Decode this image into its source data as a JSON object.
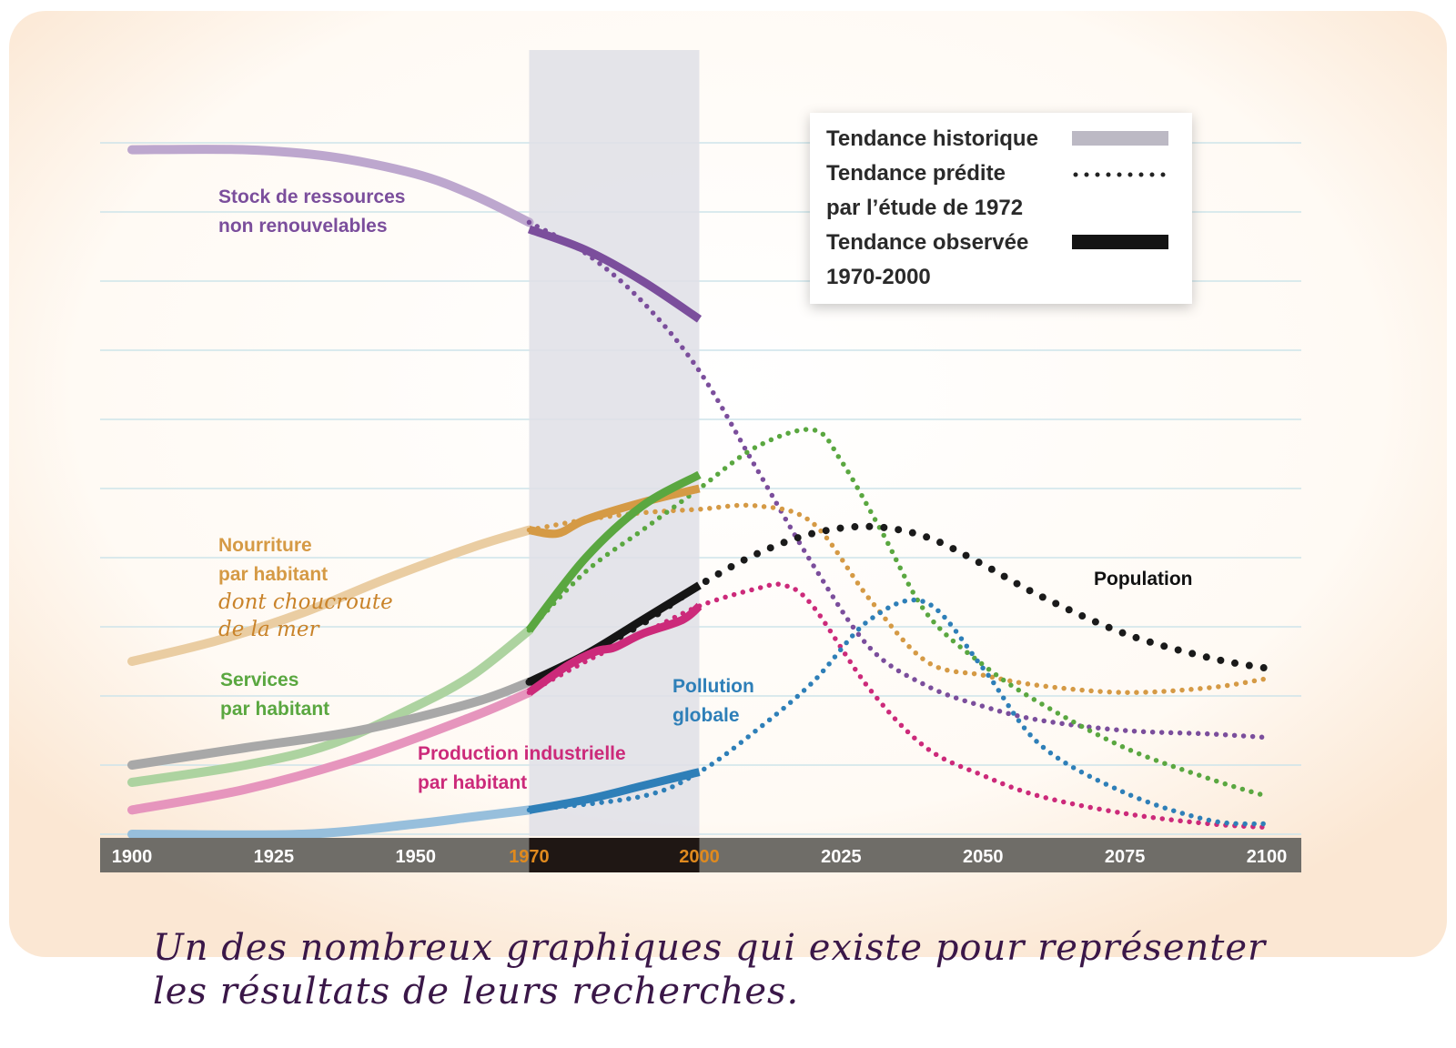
{
  "caption": {
    "line1": "Un des nombreux graphiques qui existe pour représenter",
    "line2": "les résultats de leurs recherches."
  },
  "chart_data": {
    "type": "line",
    "title": "",
    "xlabel": "",
    "ylabel": "",
    "xlim": [
      1900,
      2100
    ],
    "ylim": [
      0,
      1
    ],
    "grid": true,
    "highlight_range": [
      1970,
      2000
    ],
    "x_ticks": [
      {
        "value": 1900,
        "label": "1900",
        "color": "#ffffff"
      },
      {
        "value": 1925,
        "label": "1925",
        "color": "#ffffff"
      },
      {
        "value": 1950,
        "label": "1950",
        "color": "#ffffff"
      },
      {
        "value": 1970,
        "label": "1970",
        "color": "#e08a1e"
      },
      {
        "value": 2000,
        "label": "2000",
        "color": "#e08a1e"
      },
      {
        "value": 2025,
        "label": "2025",
        "color": "#ffffff"
      },
      {
        "value": 2050,
        "label": "2050",
        "color": "#ffffff"
      },
      {
        "value": 2075,
        "label": "2075",
        "color": "#ffffff"
      },
      {
        "value": 2100,
        "label": "2100",
        "color": "#ffffff"
      }
    ],
    "legend": {
      "position": "top-right",
      "items": [
        {
          "label": "Tendance historique",
          "style": "band"
        },
        {
          "label": "Tendance prédite\npar l’étude de 1972",
          "style": "dotted"
        },
        {
          "label": "Tendance observée\n1970-2000",
          "style": "solid"
        }
      ]
    },
    "series": [
      {
        "name": "Stock de ressources non renouvelables",
        "label_lines": [
          "Stock de ressources",
          "non renouvelables"
        ],
        "color": "#7b4e9c",
        "historic": [
          [
            1900,
            0.99
          ],
          [
            1920,
            0.99
          ],
          [
            1935,
            0.98
          ],
          [
            1950,
            0.955
          ],
          [
            1960,
            0.925
          ],
          [
            1970,
            0.885
          ]
        ],
        "predicted": [
          [
            1970,
            0.885
          ],
          [
            1980,
            0.84
          ],
          [
            1990,
            0.77
          ],
          [
            2000,
            0.67
          ],
          [
            2010,
            0.53
          ],
          [
            2020,
            0.39
          ],
          [
            2030,
            0.27
          ],
          [
            2040,
            0.215
          ],
          [
            2050,
            0.185
          ],
          [
            2060,
            0.165
          ],
          [
            2075,
            0.15
          ],
          [
            2090,
            0.145
          ],
          [
            2100,
            0.14
          ]
        ],
        "observed": [
          [
            1970,
            0.875
          ],
          [
            1980,
            0.845
          ],
          [
            1990,
            0.8
          ],
          [
            2000,
            0.745
          ]
        ]
      },
      {
        "name": "Nourriture par habitant",
        "label_lines": [
          "Nourriture",
          "par habitant"
        ],
        "color": "#d59a45",
        "historic": [
          [
            1900,
            0.25
          ],
          [
            1915,
            0.28
          ],
          [
            1930,
            0.32
          ],
          [
            1945,
            0.37
          ],
          [
            1960,
            0.415
          ],
          [
            1970,
            0.44
          ]
        ],
        "predicted": [
          [
            1970,
            0.44
          ],
          [
            1980,
            0.455
          ],
          [
            1990,
            0.465
          ],
          [
            2000,
            0.47
          ],
          [
            2010,
            0.475
          ],
          [
            2020,
            0.45
          ],
          [
            2030,
            0.34
          ],
          [
            2040,
            0.25
          ],
          [
            2050,
            0.23
          ],
          [
            2060,
            0.215
          ],
          [
            2075,
            0.205
          ],
          [
            2090,
            0.212
          ],
          [
            2100,
            0.225
          ]
        ],
        "observed": [
          [
            1970,
            0.44
          ],
          [
            1975,
            0.435
          ],
          [
            1980,
            0.455
          ],
          [
            1990,
            0.48
          ],
          [
            2000,
            0.5
          ]
        ]
      },
      {
        "name": "Services par habitant",
        "label_lines": [
          "Services",
          "par habitant"
        ],
        "color": "#5aa740",
        "historic": [
          [
            1900,
            0.075
          ],
          [
            1920,
            0.1
          ],
          [
            1935,
            0.13
          ],
          [
            1950,
            0.185
          ],
          [
            1960,
            0.23
          ],
          [
            1970,
            0.295
          ]
        ],
        "predicted": [
          [
            1970,
            0.295
          ],
          [
            1980,
            0.38
          ],
          [
            1990,
            0.44
          ],
          [
            2000,
            0.5
          ],
          [
            2010,
            0.56
          ],
          [
            2020,
            0.585
          ],
          [
            2025,
            0.54
          ],
          [
            2032,
            0.44
          ],
          [
            2040,
            0.32
          ],
          [
            2050,
            0.245
          ],
          [
            2060,
            0.19
          ],
          [
            2075,
            0.125
          ],
          [
            2090,
            0.08
          ],
          [
            2100,
            0.055
          ]
        ],
        "observed": [
          [
            1970,
            0.295
          ],
          [
            1980,
            0.4
          ],
          [
            1990,
            0.475
          ],
          [
            2000,
            0.52
          ]
        ]
      },
      {
        "name": "Population",
        "label_lines": [
          "Population"
        ],
        "color": "#1a1a1a",
        "historic": [
          [
            1900,
            0.1
          ],
          [
            1920,
            0.125
          ],
          [
            1940,
            0.15
          ],
          [
            1960,
            0.19
          ],
          [
            1970,
            0.22
          ]
        ],
        "predicted": [
          [
            1970,
            0.22
          ],
          [
            1980,
            0.26
          ],
          [
            1990,
            0.305
          ],
          [
            2000,
            0.36
          ],
          [
            2010,
            0.405
          ],
          [
            2020,
            0.435
          ],
          [
            2030,
            0.445
          ],
          [
            2040,
            0.43
          ],
          [
            2050,
            0.39
          ],
          [
            2060,
            0.345
          ],
          [
            2075,
            0.29
          ],
          [
            2090,
            0.255
          ],
          [
            2100,
            0.24
          ]
        ],
        "observed": [
          [
            1970,
            0.22
          ],
          [
            1980,
            0.26
          ],
          [
            1990,
            0.31
          ],
          [
            2000,
            0.36
          ]
        ]
      },
      {
        "name": "Production industrielle par habitant",
        "label_lines": [
          "Production industrielle",
          "par habitant"
        ],
        "color": "#cc2a7a",
        "historic": [
          [
            1900,
            0.035
          ],
          [
            1920,
            0.065
          ],
          [
            1940,
            0.11
          ],
          [
            1960,
            0.17
          ],
          [
            1970,
            0.205
          ]
        ],
        "predicted": [
          [
            1970,
            0.205
          ],
          [
            1980,
            0.25
          ],
          [
            1990,
            0.29
          ],
          [
            2000,
            0.33
          ],
          [
            2010,
            0.355
          ],
          [
            2015,
            0.36
          ],
          [
            2020,
            0.33
          ],
          [
            2030,
            0.21
          ],
          [
            2040,
            0.125
          ],
          [
            2050,
            0.085
          ],
          [
            2060,
            0.055
          ],
          [
            2075,
            0.03
          ],
          [
            2090,
            0.015
          ],
          [
            2100,
            0.01
          ]
        ],
        "observed": [
          [
            1970,
            0.205
          ],
          [
            1977,
            0.245
          ],
          [
            1982,
            0.265
          ],
          [
            1985,
            0.27
          ],
          [
            1990,
            0.29
          ],
          [
            1997,
            0.31
          ],
          [
            2000,
            0.33
          ]
        ]
      },
      {
        "name": "Pollution globale",
        "label_lines": [
          "Pollution",
          "globale"
        ],
        "color": "#2e7fb8",
        "historic": [
          [
            1900,
            0.0
          ],
          [
            1930,
            0.0
          ],
          [
            1950,
            0.015
          ],
          [
            1960,
            0.025
          ],
          [
            1970,
            0.035
          ]
        ],
        "predicted": [
          [
            1970,
            0.035
          ],
          [
            1990,
            0.055
          ],
          [
            2000,
            0.09
          ],
          [
            2010,
            0.15
          ],
          [
            2020,
            0.22
          ],
          [
            2030,
            0.31
          ],
          [
            2040,
            0.335
          ],
          [
            2050,
            0.24
          ],
          [
            2060,
            0.13
          ],
          [
            2075,
            0.06
          ],
          [
            2090,
            0.02
          ],
          [
            2100,
            0.015
          ]
        ],
        "observed": [
          [
            1970,
            0.035
          ],
          [
            1980,
            0.05
          ],
          [
            1990,
            0.07
          ],
          [
            2000,
            0.09
          ]
        ]
      }
    ],
    "series_label_note": {
      "series": "Nourriture par habitant",
      "text_lines": [
        "dont choucroute",
        "de la mer"
      ]
    }
  }
}
